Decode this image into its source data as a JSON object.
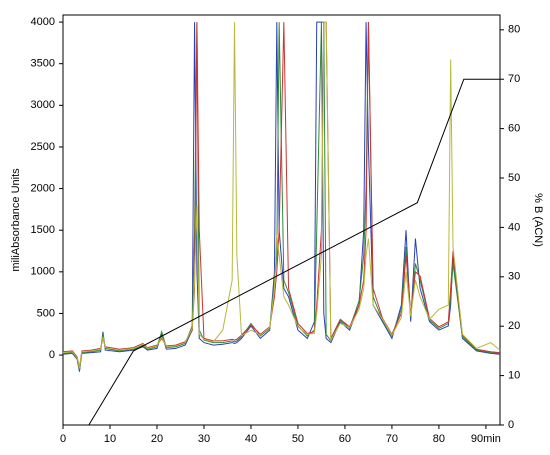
{
  "chart_data": {
    "type": "line",
    "y_label": "miliAbsorbance Units",
    "y2_label": "% B (ACN)",
    "xlim": [
      0,
      93
    ],
    "ylim": [
      -840,
      4085
    ],
    "y2lim": [
      0,
      83
    ],
    "xticks": [
      0,
      10,
      20,
      30,
      40,
      50,
      60,
      70,
      80,
      {
        "value": 90,
        "label": "90min"
      }
    ],
    "yticks": [
      0,
      500,
      1000,
      1500,
      2000,
      2500,
      3000,
      3500,
      4000
    ],
    "y2ticks": [
      0,
      10,
      20,
      30,
      40,
      50,
      60,
      70,
      80
    ],
    "x": [
      0,
      2,
      3,
      3.5,
      4,
      6,
      8,
      8.5,
      9,
      12,
      15,
      17,
      18,
      20,
      21,
      22,
      24,
      26,
      27.5,
      28,
      28.5,
      29,
      30,
      32,
      34,
      36,
      36.5,
      37,
      38,
      40,
      42,
      44,
      45,
      45.5,
      46,
      47,
      48,
      50,
      52,
      53.5,
      54,
      55,
      55.5,
      56,
      57,
      59,
      61,
      63,
      64,
      64.5,
      65,
      66,
      68,
      70,
      72,
      73,
      74,
      75,
      76,
      78,
      80,
      82,
      82.5,
      83,
      85,
      88,
      91,
      93
    ],
    "series": [
      {
        "color": "#2a3fb8",
        "values": [
          10,
          20,
          -50,
          -200,
          20,
          30,
          40,
          280,
          60,
          40,
          60,
          100,
          60,
          80,
          250,
          70,
          80,
          120,
          300,
          4000,
          1000,
          200,
          150,
          120,
          130,
          150,
          140,
          150,
          200,
          350,
          200,
          300,
          1000,
          4000,
          1500,
          800,
          700,
          300,
          200,
          400,
          4000,
          4000,
          500,
          200,
          150,
          400,
          300,
          600,
          1500,
          4000,
          2500,
          600,
          400,
          200,
          600,
          1500,
          400,
          1400,
          800,
          400,
          300,
          350,
          600,
          1200,
          200,
          50,
          20,
          10
        ]
      },
      {
        "color": "#2e8b3a",
        "values": [
          20,
          30,
          -40,
          -180,
          30,
          40,
          60,
          250,
          80,
          50,
          70,
          120,
          70,
          100,
          280,
          90,
          100,
          140,
          350,
          1500,
          4000,
          300,
          180,
          150,
          150,
          170,
          160,
          170,
          220,
          380,
          230,
          320,
          900,
          1200,
          4000,
          900,
          750,
          350,
          230,
          300,
          1500,
          4000,
          4000,
          250,
          170,
          420,
          320,
          650,
          1200,
          2000,
          4000,
          700,
          420,
          230,
          550,
          1300,
          450,
          1100,
          900,
          420,
          320,
          380,
          700,
          1100,
          220,
          60,
          30,
          20
        ]
      },
      {
        "color": "#cc3333",
        "values": [
          40,
          50,
          -20,
          -150,
          50,
          60,
          80,
          200,
          100,
          70,
          90,
          140,
          90,
          120,
          200,
          110,
          120,
          160,
          300,
          800,
          4000,
          1500,
          200,
          170,
          170,
          190,
          180,
          190,
          240,
          360,
          250,
          340,
          700,
          1000,
          1500,
          4000,
          800,
          380,
          260,
          280,
          600,
          1500,
          4000,
          4000,
          200,
          430,
          340,
          600,
          900,
          1500,
          4000,
          800,
          440,
          250,
          500,
          1200,
          480,
          1000,
          950,
          440,
          340,
          400,
          800,
          1250,
          240,
          70,
          40,
          30
        ]
      },
      {
        "color": "#b8b83c",
        "values": [
          30,
          40,
          -30,
          -160,
          40,
          50,
          70,
          220,
          90,
          60,
          80,
          130,
          80,
          110,
          220,
          100,
          110,
          150,
          320,
          900,
          1800,
          250,
          190,
          160,
          300,
          900,
          4000,
          1200,
          230,
          300,
          240,
          330,
          800,
          1450,
          1200,
          700,
          600,
          340,
          250,
          260,
          500,
          1200,
          4000,
          4000,
          180,
          380,
          330,
          550,
          800,
          1200,
          1400,
          600,
          430,
          240,
          450,
          1000,
          470,
          900,
          700,
          430,
          550,
          600,
          3550,
          1300,
          250,
          80,
          150,
          60
        ]
      },
      {
        "color": "#000000",
        "axis": "y2",
        "x": [
          5.5,
          15,
          75.4,
          85.3,
          93
        ],
        "values": [
          0,
          15,
          45,
          70,
          70
        ]
      }
    ]
  }
}
